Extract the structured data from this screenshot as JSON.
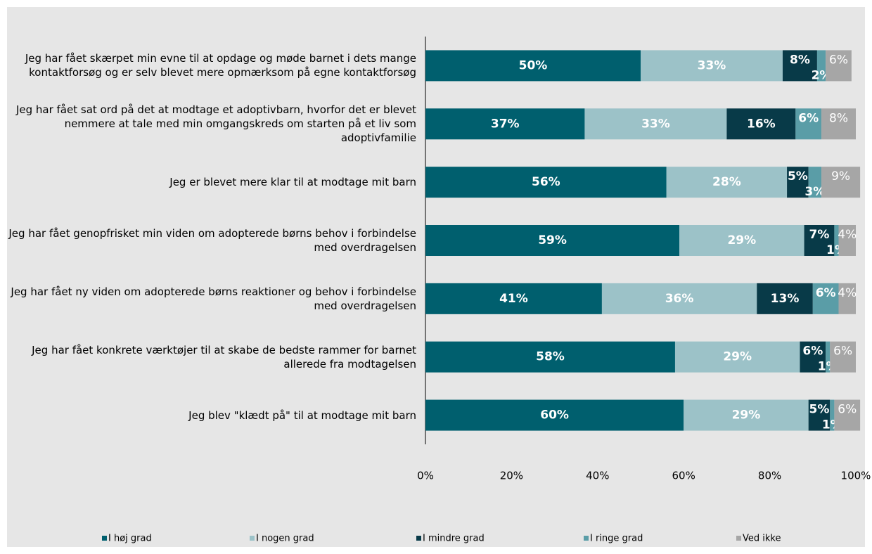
{
  "chart_data": {
    "type": "stacked-bar-horizontal",
    "categories": [
      "Jeg har fået skærpet min evne til at opdage og møde barnet i dets mange kontaktforsøg og er selv blevet mere opmærksom på egne kontaktforsøg",
      "Jeg har fået sat ord på det at modtage et adoptivbarn, hvorfor det er blevet nemmere at tale med min omgangskreds om starten på et liv som adoptivfamilie",
      "Jeg er blevet mere klar til at modtage mit barn",
      "Jeg har fået genopfrisket min viden om adopterede børns behov i forbindelse med overdragelsen",
      "Jeg har fået ny viden om adopterede børns reaktioner og behov i forbindelse med overdragelsen",
      "Jeg har fået konkrete værktøjer til at skabe de bedste rammer for barnet allerede fra modtagelsen",
      "Jeg blev \"klædt på\" til at modtage mit barn"
    ],
    "series": [
      {
        "name": "I høj grad",
        "color": "#005f6e",
        "values": [
          50,
          37,
          56,
          59,
          41,
          58,
          60
        ],
        "value_labels": [
          "50%",
          "37%",
          "56%",
          "59%",
          "41%",
          "58%",
          "60%"
        ]
      },
      {
        "name": "I nogen grad",
        "color": "#9cc2c8",
        "values": [
          33,
          33,
          28,
          29,
          36,
          29,
          29
        ],
        "value_labels": [
          "33%",
          "33%",
          "28%",
          "29%",
          "36%",
          "29%",
          "29%"
        ]
      },
      {
        "name": "I mindre grad",
        "color": "#083a48",
        "values": [
          8,
          16,
          5,
          7,
          13,
          6,
          5
        ],
        "value_labels": [
          "8%",
          "16%",
          "5%",
          "7%",
          "13%",
          "6%",
          "5%"
        ]
      },
      {
        "name": "I ringe grad",
        "color": "#5a9da7",
        "values": [
          2,
          6,
          3,
          1,
          6,
          1,
          1
        ],
        "value_labels": [
          "2%",
          "6%",
          "3%",
          "1%",
          "6%",
          "1%",
          "1%"
        ]
      },
      {
        "name": "Ved ikke",
        "color": "#a6a6a6",
        "values": [
          6,
          8,
          9,
          4,
          4,
          6,
          6
        ],
        "value_labels": [
          "6%",
          "8%",
          "9%",
          "4%",
          "4%",
          "6%",
          "6%"
        ]
      }
    ],
    "xlim": [
      0,
      100
    ],
    "xticks": [
      {
        "value": 0,
        "label": "0%"
      },
      {
        "value": 20,
        "label": "20%"
      },
      {
        "value": 40,
        "label": "40%"
      },
      {
        "value": 60,
        "label": "60%"
      },
      {
        "value": 80,
        "label": "80%"
      },
      {
        "value": 100,
        "label": "100%"
      }
    ],
    "legend": "bottom"
  }
}
